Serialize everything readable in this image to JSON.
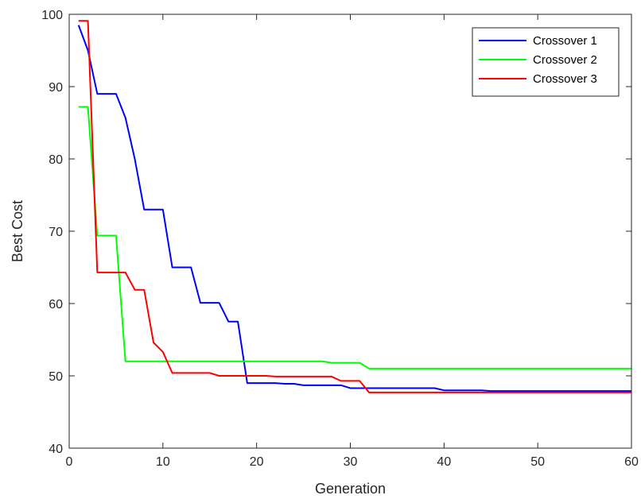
{
  "chart_data": {
    "type": "line",
    "title": "",
    "xlabel": "Generation",
    "ylabel": "Best Cost",
    "xlim": [
      0,
      60
    ],
    "ylim": [
      40,
      100
    ],
    "xticks": [
      0,
      10,
      20,
      30,
      40,
      50,
      60
    ],
    "yticks": [
      40,
      50,
      60,
      70,
      80,
      90,
      100
    ],
    "grid": false,
    "legend_position": "top-right",
    "series": [
      {
        "name": "Crossover 1",
        "color": "#0000ff",
        "x": [
          1,
          2,
          3,
          4,
          5,
          6,
          7,
          8,
          9,
          10,
          11,
          12,
          13,
          14,
          15,
          16,
          17,
          18,
          19,
          20,
          21,
          22,
          23,
          24,
          25,
          26,
          27,
          28,
          29,
          30,
          31,
          32,
          33,
          34,
          35,
          36,
          37,
          38,
          39,
          40,
          41,
          42,
          43,
          44,
          45,
          46,
          47,
          48,
          49,
          50,
          51,
          52,
          53,
          54,
          55,
          56,
          57,
          58,
          59,
          60
        ],
        "y": [
          98.5,
          95.0,
          89.0,
          89.0,
          89.0,
          85.7,
          80.0,
          73.0,
          73.0,
          73.0,
          65.0,
          65.0,
          65.0,
          60.1,
          60.1,
          60.1,
          57.5,
          57.5,
          49.0,
          49.0,
          49.0,
          49.0,
          48.9,
          48.9,
          48.7,
          48.7,
          48.7,
          48.7,
          48.7,
          48.3,
          48.3,
          48.3,
          48.3,
          48.3,
          48.3,
          48.3,
          48.3,
          48.3,
          48.3,
          48.0,
          48.0,
          48.0,
          48.0,
          48.0,
          47.9,
          47.9,
          47.9,
          47.9,
          47.9,
          47.9,
          47.9,
          47.9,
          47.9,
          47.9,
          47.9,
          47.9,
          47.9,
          47.9,
          47.9,
          47.9
        ]
      },
      {
        "name": "Crossover 2",
        "color": "#00ff00",
        "x": [
          1,
          2,
          3,
          4,
          5,
          6,
          7,
          8,
          9,
          10,
          11,
          12,
          13,
          14,
          15,
          16,
          17,
          18,
          19,
          20,
          21,
          22,
          23,
          24,
          25,
          26,
          27,
          28,
          29,
          30,
          31,
          32,
          33,
          34,
          35,
          36,
          37,
          38,
          39,
          40,
          41,
          42,
          43,
          44,
          45,
          46,
          47,
          48,
          49,
          50,
          51,
          52,
          53,
          54,
          55,
          56,
          57,
          58,
          59,
          60
        ],
        "y": [
          87.2,
          87.2,
          69.4,
          69.4,
          69.4,
          52.0,
          52.0,
          52.0,
          52.0,
          52.0,
          52.0,
          52.0,
          52.0,
          52.0,
          52.0,
          52.0,
          52.0,
          52.0,
          52.0,
          52.0,
          52.0,
          52.0,
          52.0,
          52.0,
          52.0,
          52.0,
          52.0,
          51.8,
          51.8,
          51.8,
          51.8,
          51.0,
          51.0,
          51.0,
          51.0,
          51.0,
          51.0,
          51.0,
          51.0,
          51.0,
          51.0,
          51.0,
          51.0,
          51.0,
          51.0,
          51.0,
          51.0,
          51.0,
          51.0,
          51.0,
          51.0,
          51.0,
          51.0,
          51.0,
          51.0,
          51.0,
          51.0,
          51.0,
          51.0,
          51.0
        ]
      },
      {
        "name": "Crossover 3",
        "color": "#ff0000",
        "x": [
          1,
          2,
          3,
          4,
          5,
          6,
          7,
          8,
          9,
          10,
          11,
          12,
          13,
          14,
          15,
          16,
          17,
          18,
          19,
          20,
          21,
          22,
          23,
          24,
          25,
          26,
          27,
          28,
          29,
          30,
          31,
          32,
          33,
          34,
          35,
          36,
          37,
          38,
          39,
          40,
          41,
          42,
          43,
          44,
          45,
          46,
          47,
          48,
          49,
          50,
          51,
          52,
          53,
          54,
          55,
          56,
          57,
          58,
          59,
          60
        ],
        "y": [
          99.1,
          99.1,
          64.3,
          64.3,
          64.3,
          64.3,
          61.9,
          61.9,
          54.6,
          53.3,
          50.4,
          50.4,
          50.4,
          50.4,
          50.4,
          50.0,
          50.0,
          50.0,
          50.0,
          50.0,
          50.0,
          49.9,
          49.9,
          49.9,
          49.9,
          49.9,
          49.9,
          49.9,
          49.3,
          49.3,
          49.3,
          47.7,
          47.7,
          47.7,
          47.7,
          47.7,
          47.7,
          47.7,
          47.7,
          47.7,
          47.7,
          47.7,
          47.7,
          47.7,
          47.7,
          47.7,
          47.7,
          47.7,
          47.7,
          47.7,
          47.7,
          47.7,
          47.7,
          47.7,
          47.7,
          47.7,
          47.7,
          47.7,
          47.7,
          47.7
        ]
      }
    ]
  }
}
